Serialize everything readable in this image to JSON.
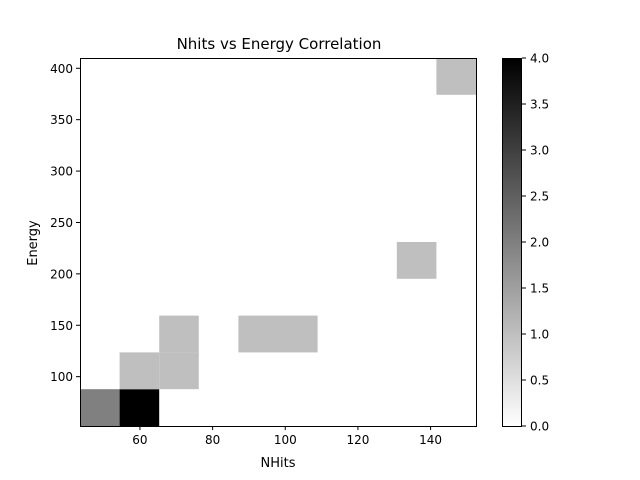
{
  "chart_data": {
    "type": "heatmap",
    "title": "Nhits vs Energy Correlation",
    "xlabel": "NHits",
    "ylabel": "Energy",
    "xlim": [
      43.5,
      152.5
    ],
    "ylim": [
      52,
      410
    ],
    "x_ticks": [
      60,
      80,
      100,
      120,
      140
    ],
    "y_ticks": [
      100,
      150,
      200,
      250,
      300,
      350,
      400
    ],
    "x_bin_edges": [
      43.5,
      54.4,
      65.3,
      76.2,
      87.1,
      98.0,
      108.9,
      119.8,
      130.7,
      141.6,
      152.5
    ],
    "y_bin_edges": [
      52,
      87.8,
      123.6,
      159.4,
      195.2,
      231.0,
      266.8,
      302.6,
      338.4,
      374.2,
      410
    ],
    "counts": [
      [
        2,
        4,
        0,
        0,
        0,
        0,
        0,
        0,
        0,
        0
      ],
      [
        0,
        1,
        1,
        0,
        0,
        0,
        0,
        0,
        0,
        0
      ],
      [
        0,
        0,
        1,
        0,
        1,
        1,
        0,
        0,
        0,
        0
      ],
      [
        0,
        0,
        0,
        0,
        0,
        0,
        0,
        0,
        0,
        0
      ],
      [
        0,
        0,
        0,
        0,
        0,
        0,
        0,
        0,
        1,
        0
      ],
      [
        0,
        0,
        0,
        0,
        0,
        0,
        0,
        0,
        0,
        0
      ],
      [
        0,
        0,
        0,
        0,
        0,
        0,
        0,
        0,
        0,
        0
      ],
      [
        0,
        0,
        0,
        0,
        0,
        0,
        0,
        0,
        0,
        0
      ],
      [
        0,
        0,
        0,
        0,
        0,
        0,
        0,
        0,
        0,
        0
      ],
      [
        0,
        0,
        0,
        0,
        0,
        0,
        0,
        0,
        0,
        1
      ]
    ],
    "colormap": "Greys",
    "colorbar": {
      "range": [
        0,
        4
      ],
      "ticks": [
        "0.0",
        "0.5",
        "1.0",
        "1.5",
        "2.0",
        "2.5",
        "3.0",
        "3.5",
        "4.0"
      ]
    },
    "grid": false
  }
}
